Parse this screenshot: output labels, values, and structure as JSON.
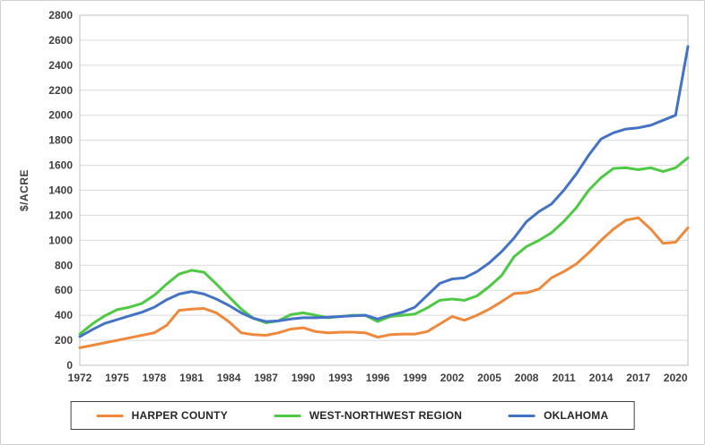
{
  "chart_data": {
    "type": "line",
    "title": "",
    "xlabel": "",
    "ylabel": "$/ACRE",
    "ylim": [
      0,
      2800
    ],
    "y_step": 200,
    "xlim": [
      1972,
      2021
    ],
    "x_ticks": [
      1972,
      1975,
      1978,
      1981,
      1984,
      1987,
      1990,
      1993,
      1996,
      1999,
      2002,
      2005,
      2008,
      2011,
      2014,
      2017,
      2020
    ],
    "x": [
      1972,
      1973,
      1974,
      1975,
      1976,
      1977,
      1978,
      1979,
      1980,
      1981,
      1982,
      1983,
      1984,
      1985,
      1986,
      1987,
      1988,
      1989,
      1990,
      1991,
      1992,
      1993,
      1994,
      1995,
      1996,
      1997,
      1998,
      1999,
      2000,
      2001,
      2002,
      2003,
      2004,
      2005,
      2006,
      2007,
      2008,
      2009,
      2010,
      2011,
      2012,
      2013,
      2014,
      2015,
      2016,
      2017,
      2018,
      2019,
      2020,
      2021
    ],
    "grid": "horizontal",
    "legend_position": "bottom",
    "series": [
      {
        "name": "HARPER COUNTY",
        "color": "#F0883C",
        "values": [
          140,
          160,
          180,
          200,
          220,
          240,
          260,
          320,
          440,
          450,
          455,
          420,
          350,
          260,
          245,
          240,
          260,
          290,
          300,
          270,
          260,
          265,
          265,
          260,
          225,
          245,
          250,
          250,
          270,
          330,
          390,
          360,
          400,
          450,
          510,
          575,
          580,
          610,
          700,
          750,
          810,
          900,
          1000,
          1090,
          1160,
          1180,
          1090,
          975,
          985,
          1100
        ]
      },
      {
        "name": "WEST-NORTHWEST REGION",
        "color": "#4DC943",
        "values": [
          250,
          330,
          395,
          445,
          465,
          495,
          560,
          650,
          730,
          760,
          745,
          650,
          550,
          450,
          375,
          340,
          355,
          405,
          420,
          400,
          380,
          390,
          400,
          400,
          350,
          390,
          400,
          410,
          460,
          520,
          530,
          520,
          555,
          630,
          720,
          870,
          950,
          1000,
          1060,
          1150,
          1260,
          1400,
          1500,
          1575,
          1580,
          1565,
          1580,
          1550,
          1580,
          1660
        ]
      },
      {
        "name": "OKLAHOMA",
        "color": "#4472C4",
        "values": [
          230,
          285,
          335,
          365,
          395,
          425,
          465,
          525,
          570,
          590,
          570,
          530,
          480,
          420,
          375,
          350,
          355,
          370,
          380,
          380,
          385,
          390,
          395,
          400,
          370,
          400,
          425,
          465,
          560,
          655,
          690,
          700,
          750,
          820,
          910,
          1020,
          1150,
          1230,
          1290,
          1400,
          1530,
          1680,
          1810,
          1860,
          1890,
          1900,
          1920,
          1960,
          2000,
          2550
        ]
      }
    ]
  }
}
